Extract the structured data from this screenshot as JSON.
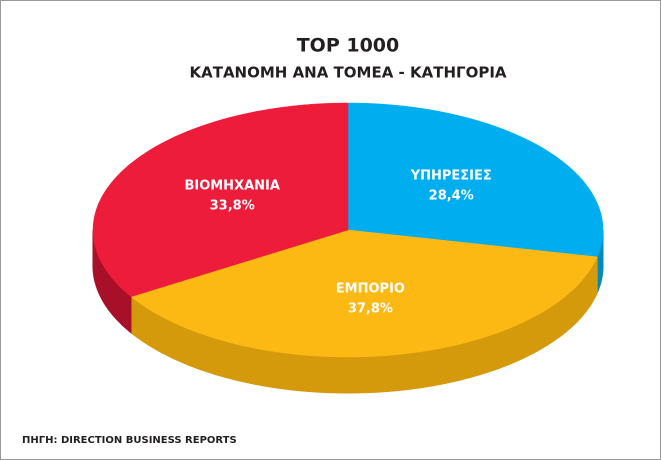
{
  "chart_data": {
    "type": "pie3d",
    "title": "TOP 1000",
    "subtitle": "ΚΑΤΑΝΟΜΗ ΑΝΑ ΤΟΜΕΑ - ΚΑΤΗΓΟΡΙΑ",
    "categories": [
      "ΥΠΗΡΕΣΙΕΣ",
      "ΕΜΠΟΡΙΟ",
      "ΒΙΟΜΗΧΑΝΙΑ"
    ],
    "values": [
      28.4,
      37.8,
      33.8
    ],
    "value_labels": [
      "28,4%",
      "37,8%",
      "33,8%"
    ],
    "colors": [
      "#00aeef",
      "#fdb913",
      "#ee1c3b"
    ],
    "side_colors": [
      "#0089bd",
      "#d49a0c",
      "#a8102a"
    ],
    "source": "ΠΗΓΗ: DIRECTION BUSINESS REPORTS"
  }
}
